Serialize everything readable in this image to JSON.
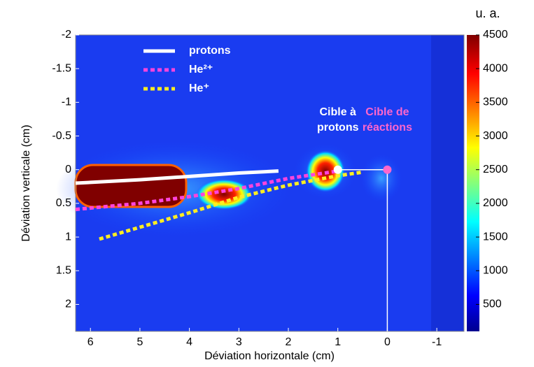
{
  "chart_data": {
    "type": "image",
    "xlabel": "Déviation horizontale (cm)",
    "ylabel": "Déviation verticale (cm)",
    "xlim": [
      6.3,
      -1.55
    ],
    "xticks": [
      6,
      5,
      4,
      3,
      2,
      1,
      0,
      -1
    ],
    "ylim": [
      2.4,
      -2
    ],
    "yticks": [
      -2,
      -1.5,
      -1,
      -0.5,
      0,
      0.5,
      1,
      1.5,
      2
    ],
    "series": [
      {
        "name": "protons",
        "color": "#ffffff",
        "dashed": false,
        "x": [
          6.3,
          5,
          4,
          3,
          2.2
        ],
        "y": [
          0.2,
          0.15,
          0.1,
          0.05,
          0.02
        ]
      },
      {
        "name": "He²⁺",
        "color": "#ff44dd",
        "dashed": true,
        "x": [
          6.3,
          5,
          4,
          3,
          2,
          1
        ],
        "y": [
          0.59,
          0.5,
          0.4,
          0.28,
          0.13,
          0.02
        ]
      },
      {
        "name": "He⁺",
        "color": "#ffee22",
        "dashed": true,
        "x": [
          5.82,
          4,
          3,
          2,
          1,
          0.53
        ],
        "y": [
          1.03,
          0.64,
          0.41,
          0.23,
          0.09,
          0.04
        ]
      }
    ],
    "points": [
      {
        "x": 1,
        "y": 0,
        "color": "#ffffff",
        "label": [
          "Cible à",
          "protons"
        ]
      },
      {
        "x": 0,
        "y": 0,
        "color": "#ff66cc",
        "label": [
          "Cible de",
          "réactions"
        ]
      }
    ],
    "colorbar": {
      "label": "u. a.",
      "lim": [
        100,
        4500
      ],
      "ticks": [
        500,
        1000,
        1500,
        2000,
        2500,
        3000,
        3500,
        4000,
        4500
      ]
    }
  }
}
